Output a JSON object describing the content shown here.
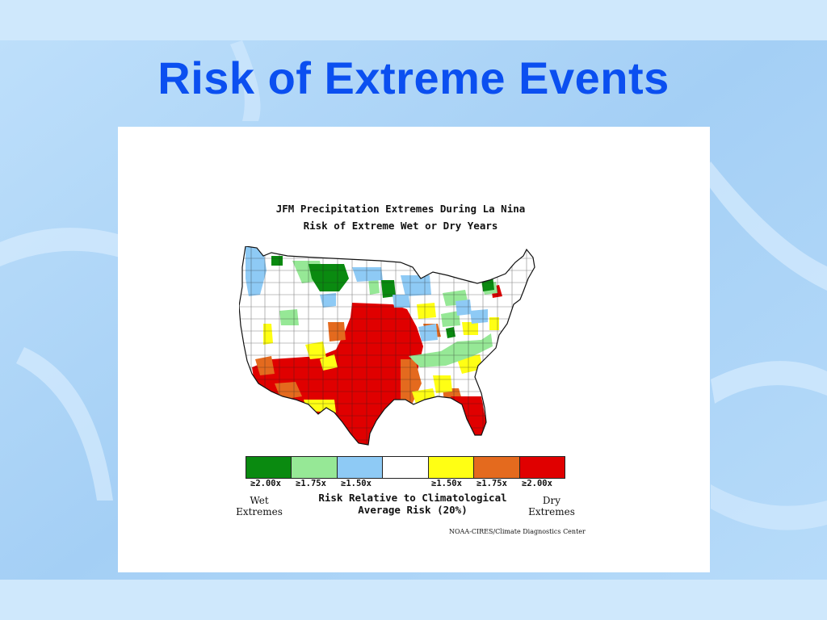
{
  "slide": {
    "title": "Risk of Extreme Events"
  },
  "map": {
    "title_line1": "JFM Precipitation Extremes During La Nina",
    "title_line2": "Risk of Extreme Wet or Dry Years"
  },
  "legend": {
    "colors": [
      "#0a8a10",
      "#96e896",
      "#8ecaf5",
      "#ffffff",
      "#ffff14",
      "#e46a1e",
      "#e00000"
    ],
    "labels": [
      "≥2.00x",
      "≥1.75x",
      "≥1.50x",
      "",
      "≥1.50x",
      "≥1.75x",
      "≥2.00x"
    ],
    "wet_label": "Wet\nExtremes",
    "dry_label": "Dry\nExtremes",
    "caption_line1": "Risk Relative to Climatological",
    "caption_line2": "Average Risk (20%)",
    "credit": "NOAA-CIRES/Climate Diagnostics Center"
  }
}
